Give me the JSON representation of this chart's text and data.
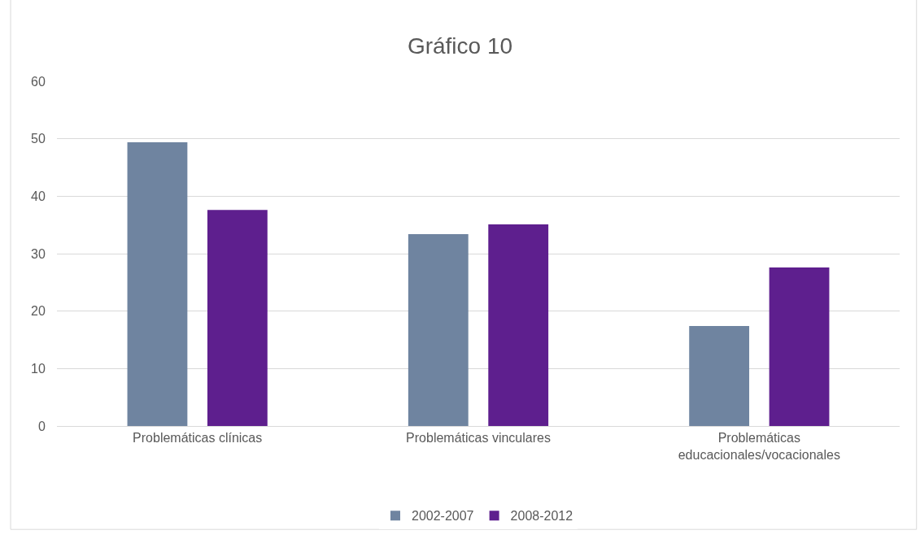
{
  "chart_data": {
    "type": "bar",
    "title": "Gráfico 10",
    "categories": [
      "Problemáticas clínicas",
      "Problemáticas vinculares",
      "Problemáticas educacionales/vocacionales"
    ],
    "series": [
      {
        "name": "2002-2007",
        "color": "#6f84a0",
        "values": [
          49.4,
          33.4,
          17.4
        ]
      },
      {
        "name": "2008-2012",
        "color": "#5e1f8e",
        "values": [
          37.6,
          35.1,
          27.6
        ]
      }
    ],
    "ylim": [
      0,
      60
    ],
    "yticks": [
      0,
      10,
      20,
      30,
      40,
      50,
      60
    ],
    "grid": "y",
    "legend": "bottom"
  }
}
